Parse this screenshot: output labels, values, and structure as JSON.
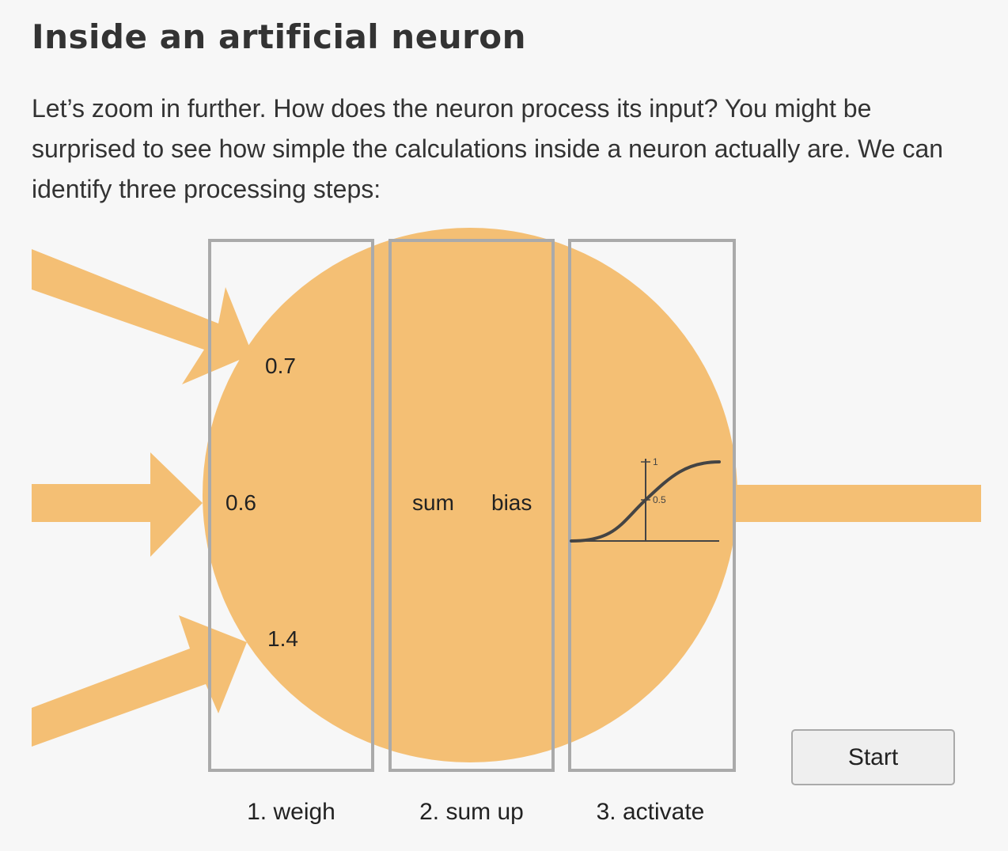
{
  "title": "Inside an artificial neuron",
  "intro": "Let’s zoom in further. How does the neuron process its input? You might be surprised to see how simple the calculations inside a neuron actually are. We can identify three processing steps:",
  "colors": {
    "neuron": "#f4bf74",
    "box_stroke": "#aaaaaa",
    "curve": "#444444"
  },
  "diagram": {
    "weights": [
      "0.7",
      "0.6",
      "1.4"
    ],
    "sum_label": "sum",
    "bias_label": "bias",
    "activation": {
      "function": "sigmoid",
      "tick_top": "1",
      "tick_mid": "0.5"
    },
    "steps": [
      "1. weigh",
      "2. sum up",
      "3. activate"
    ]
  },
  "controls": {
    "start_label": "Start"
  }
}
